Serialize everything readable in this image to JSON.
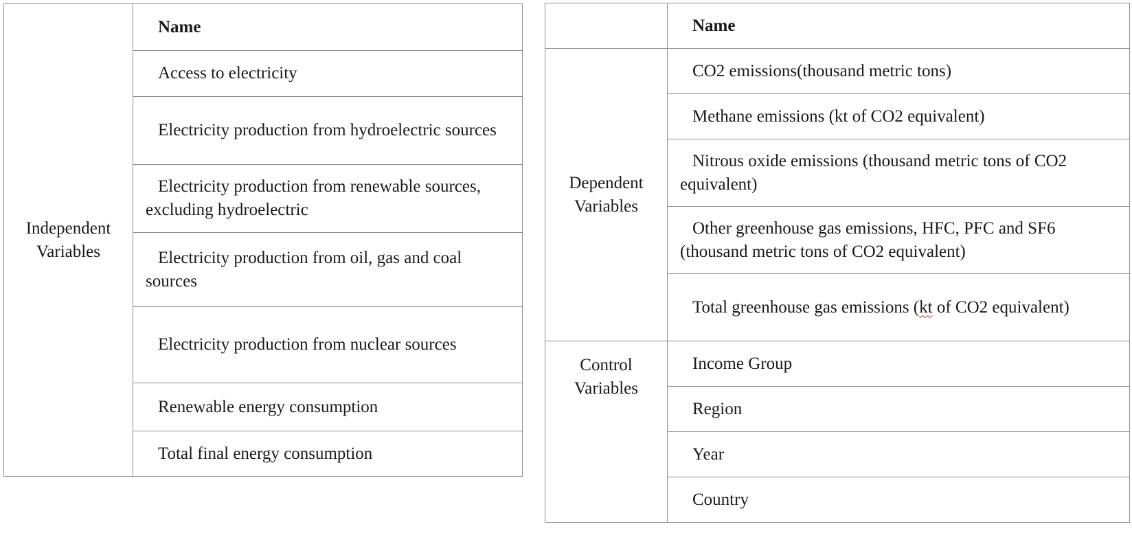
{
  "left_table": {
    "group_label": "Independent Variables",
    "header": "Name",
    "rows": [
      "Access to electricity",
      "Electricity production from hydroelectric sources",
      "Electricity production from renewable sources, excluding hydroelectric",
      "Electricity production from oil, gas and coal sources",
      "Electricity production from nuclear sources",
      "Renewable energy consumption",
      "Total final energy consumption"
    ]
  },
  "right_table": {
    "header": "Name",
    "dependent": {
      "group_label": "Dependent Variables",
      "rows": [
        "CO2 emissions(thousand metric tons)",
        "Methane emissions (kt of CO2 equivalent)",
        "Nitrous oxide emissions (thousand metric tons of CO2 equivalent)",
        "Other greenhouse gas emissions, HFC, PFC and SF6 (thousand metric tons of CO2 equivalent)",
        {
          "before": "Total greenhouse gas emissions (",
          "flagged": "kt",
          "after": " of CO2 equivalent)"
        }
      ]
    },
    "control": {
      "group_label": "Control Variables",
      "rows": [
        "Income Group",
        "Region",
        "Year",
        "Country"
      ]
    }
  }
}
